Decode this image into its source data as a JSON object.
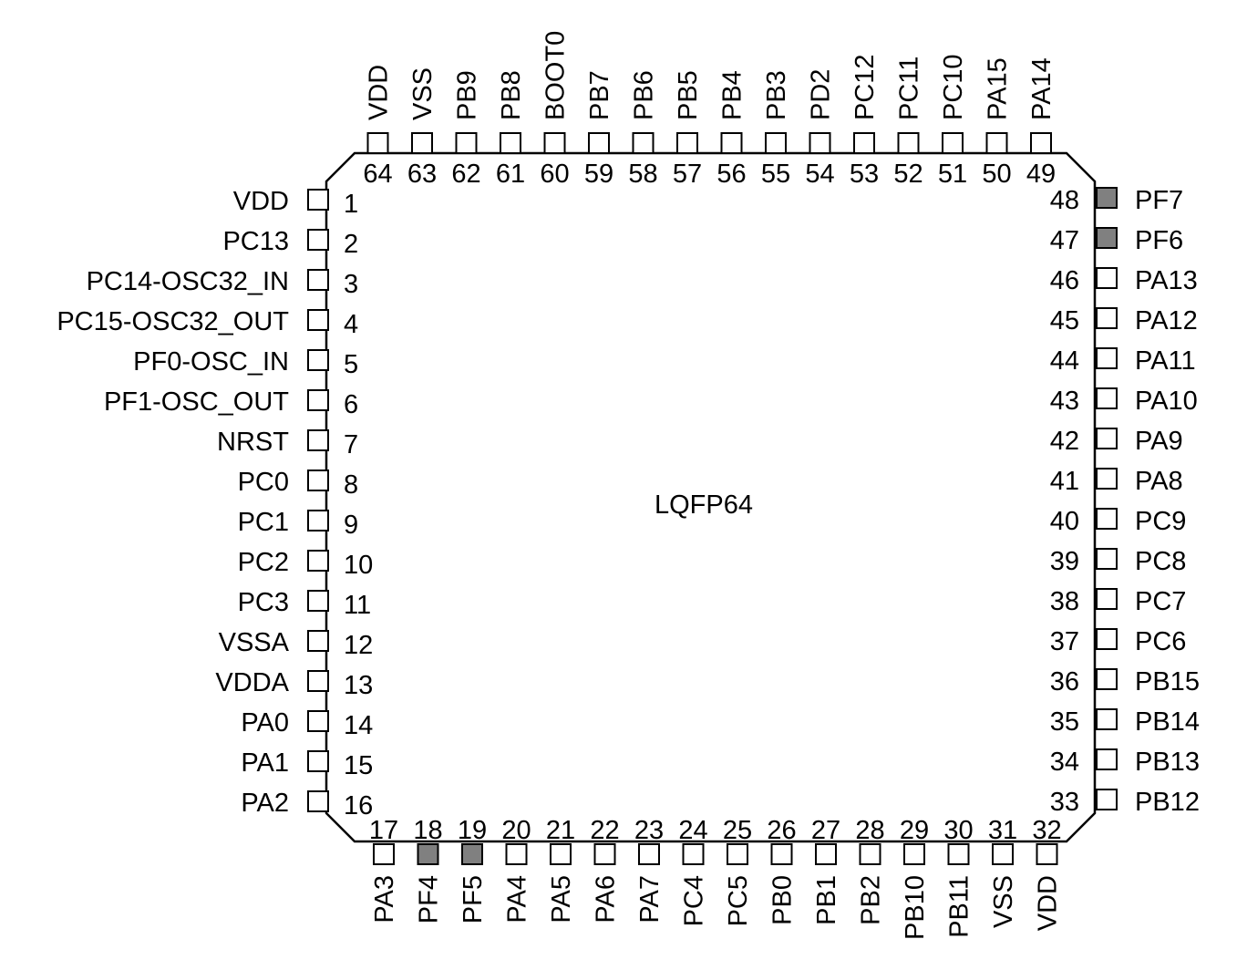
{
  "package": {
    "name": "LQFP64",
    "pin_count": 64
  },
  "colors": {
    "outline": "#000000",
    "pin_fill": "#ffffff",
    "highlight_fill": "#808080"
  },
  "pins": {
    "left": [
      {
        "number": "1",
        "name": "VDD"
      },
      {
        "number": "2",
        "name": "PC13"
      },
      {
        "number": "3",
        "name": "PC14-OSC32_IN"
      },
      {
        "number": "4",
        "name": "PC15-OSC32_OUT"
      },
      {
        "number": "5",
        "name": "PF0-OSC_IN"
      },
      {
        "number": "6",
        "name": "PF1-OSC_OUT"
      },
      {
        "number": "7",
        "name": "NRST"
      },
      {
        "number": "8",
        "name": "PC0"
      },
      {
        "number": "9",
        "name": "PC1"
      },
      {
        "number": "10",
        "name": "PC2"
      },
      {
        "number": "11",
        "name": "PC3"
      },
      {
        "number": "12",
        "name": "VSSA"
      },
      {
        "number": "13",
        "name": "VDDA"
      },
      {
        "number": "14",
        "name": "PA0"
      },
      {
        "number": "15",
        "name": "PA1"
      },
      {
        "number": "16",
        "name": "PA2"
      }
    ],
    "bottom": [
      {
        "number": "17",
        "name": "PA3"
      },
      {
        "number": "18",
        "name": "PF4",
        "highlighted": true
      },
      {
        "number": "19",
        "name": "PF5",
        "highlighted": true
      },
      {
        "number": "20",
        "name": "PA4"
      },
      {
        "number": "21",
        "name": "PA5"
      },
      {
        "number": "22",
        "name": "PA6"
      },
      {
        "number": "23",
        "name": "PA7"
      },
      {
        "number": "24",
        "name": "PC4"
      },
      {
        "number": "25",
        "name": "PC5"
      },
      {
        "number": "26",
        "name": "PB0"
      },
      {
        "number": "27",
        "name": "PB1"
      },
      {
        "number": "28",
        "name": "PB2"
      },
      {
        "number": "29",
        "name": "PB10"
      },
      {
        "number": "30",
        "name": "PB11"
      },
      {
        "number": "31",
        "name": "VSS"
      },
      {
        "number": "32",
        "name": "VDD"
      }
    ],
    "right": [
      {
        "number": "33",
        "name": "PB12"
      },
      {
        "number": "34",
        "name": "PB13"
      },
      {
        "number": "35",
        "name": "PB14"
      },
      {
        "number": "36",
        "name": "PB15"
      },
      {
        "number": "37",
        "name": "PC6"
      },
      {
        "number": "38",
        "name": "PC7"
      },
      {
        "number": "39",
        "name": "PC8"
      },
      {
        "number": "40",
        "name": "PC9"
      },
      {
        "number": "41",
        "name": "PA8"
      },
      {
        "number": "42",
        "name": "PA9"
      },
      {
        "number": "43",
        "name": "PA10"
      },
      {
        "number": "44",
        "name": "PA11"
      },
      {
        "number": "45",
        "name": "PA12"
      },
      {
        "number": "46",
        "name": "PA13"
      },
      {
        "number": "47",
        "name": "PF6",
        "highlighted": true
      },
      {
        "number": "48",
        "name": "PF7",
        "highlighted": true
      }
    ],
    "top": [
      {
        "number": "49",
        "name": "PA14"
      },
      {
        "number": "50",
        "name": "PA15"
      },
      {
        "number": "51",
        "name": "PC10"
      },
      {
        "number": "52",
        "name": "PC11"
      },
      {
        "number": "53",
        "name": "PC12"
      },
      {
        "number": "54",
        "name": "PD2"
      },
      {
        "number": "55",
        "name": "PB3"
      },
      {
        "number": "56",
        "name": "PB4"
      },
      {
        "number": "57",
        "name": "PB5"
      },
      {
        "number": "58",
        "name": "PB6"
      },
      {
        "number": "59",
        "name": "PB7"
      },
      {
        "number": "60",
        "name": "BOOT0"
      },
      {
        "number": "61",
        "name": "PB8"
      },
      {
        "number": "62",
        "name": "PB9"
      },
      {
        "number": "63",
        "name": "VSS"
      },
      {
        "number": "64",
        "name": "VDD"
      }
    ]
  }
}
